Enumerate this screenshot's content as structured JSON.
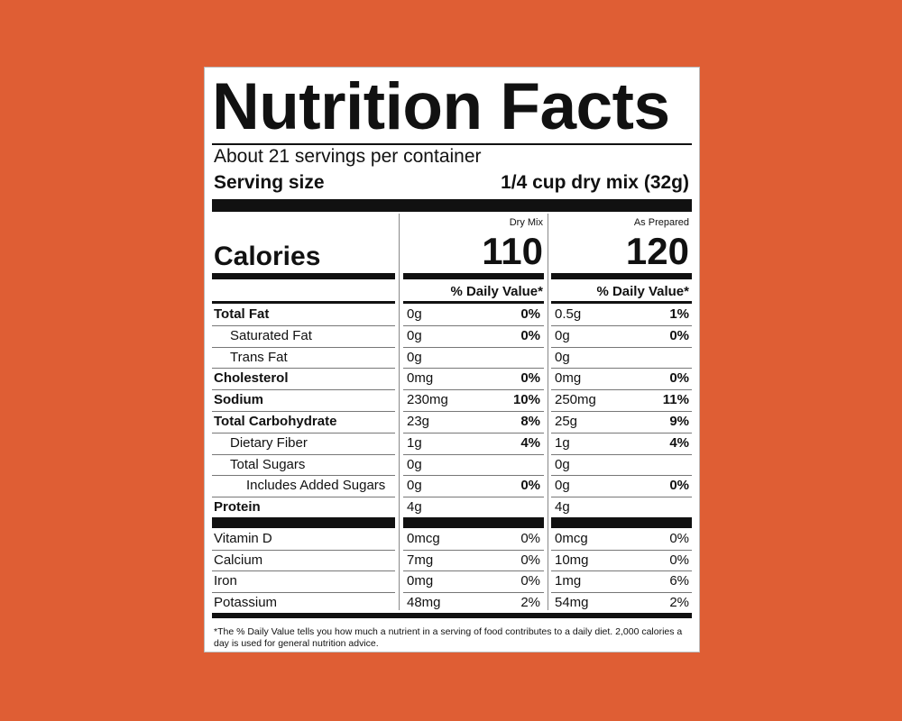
{
  "label": {
    "title": "Nutrition Facts",
    "servings_per_container": "About 21 servings per container",
    "serving_size_label": "Serving size",
    "serving_size_value": "1/4 cup dry mix (32g)",
    "calories_label": "Calories",
    "columns": [
      {
        "heading": "Dry Mix",
        "calories": "110",
        "dv_heading": "% Daily Value*"
      },
      {
        "heading": "As Prepared",
        "calories": "120",
        "dv_heading": "% Daily Value*"
      }
    ],
    "nutrients": [
      {
        "name": "Total Fat",
        "bold": true,
        "indent": 0,
        "dry": "0g",
        "dry_pct": "0%",
        "prep": "0.5g",
        "prep_pct": "1%"
      },
      {
        "name": "Saturated Fat",
        "bold": false,
        "indent": 1,
        "dry": "0g",
        "dry_pct": "0%",
        "prep": "0g",
        "prep_pct": "0%"
      },
      {
        "name": "Trans Fat",
        "bold": false,
        "indent": 1,
        "dry": "0g",
        "dry_pct": "",
        "prep": "0g",
        "prep_pct": ""
      },
      {
        "name": "Cholesterol",
        "bold": true,
        "indent": 0,
        "dry": "0mg",
        "dry_pct": "0%",
        "prep": "0mg",
        "prep_pct": "0%"
      },
      {
        "name": "Sodium",
        "bold": true,
        "indent": 0,
        "dry": "230mg",
        "dry_pct": "10%",
        "prep": "250mg",
        "prep_pct": "11%"
      },
      {
        "name": "Total Carbohydrate",
        "bold": true,
        "indent": 0,
        "dry": "23g",
        "dry_pct": "8%",
        "prep": "25g",
        "prep_pct": "9%"
      },
      {
        "name": "Dietary Fiber",
        "bold": false,
        "indent": 1,
        "dry": "1g",
        "dry_pct": "4%",
        "prep": "1g",
        "prep_pct": "4%"
      },
      {
        "name": "Total Sugars",
        "bold": false,
        "indent": 1,
        "dry": "0g",
        "dry_pct": "",
        "prep": "0g",
        "prep_pct": ""
      },
      {
        "name": "Includes Added Sugars",
        "bold": false,
        "indent": 2,
        "dry": "0g",
        "dry_pct": "0%",
        "prep": "0g",
        "prep_pct": "0%"
      },
      {
        "name": "Protein",
        "bold": true,
        "indent": 0,
        "dry": "4g",
        "dry_pct": "",
        "prep": "4g",
        "prep_pct": ""
      }
    ],
    "vitamins": [
      {
        "name": "Vitamin D",
        "dry": "0mcg",
        "dry_pct": "0%",
        "prep": "0mcg",
        "prep_pct": "0%"
      },
      {
        "name": "Calcium",
        "dry": "7mg",
        "dry_pct": "0%",
        "prep": "10mg",
        "prep_pct": "0%"
      },
      {
        "name": "Iron",
        "dry": "0mg",
        "dry_pct": "0%",
        "prep": "1mg",
        "prep_pct": "6%"
      },
      {
        "name": "Potassium",
        "dry": "48mg",
        "dry_pct": "2%",
        "prep": "54mg",
        "prep_pct": "2%"
      }
    ],
    "footnote": "*The % Daily Value tells you how much a nutrient in a serving of food contributes to a daily diet. 2,000 calories a day is used for general nutrition advice."
  },
  "colors": {
    "background": "#DF5E34",
    "label": "#FFFFFF",
    "ink": "#111111"
  }
}
